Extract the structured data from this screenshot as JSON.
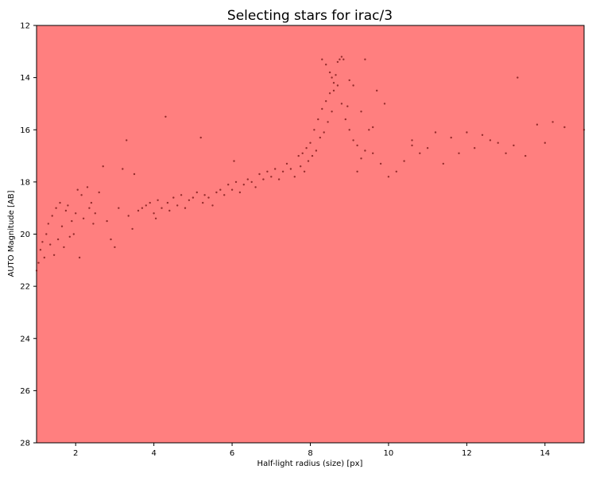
{
  "chart_data": {
    "type": "scatter",
    "title": "Selecting stars for irac/3",
    "xlabel": "Half-light radius (size) [px]",
    "ylabel": "AUTO Magnitude [AB]",
    "xlim": [
      1,
      15
    ],
    "ylim": [
      28,
      12
    ],
    "y_inverted": true,
    "xticks": [
      2,
      4,
      6,
      8,
      10,
      12,
      14
    ],
    "yticks": [
      12,
      14,
      16,
      18,
      20,
      22,
      24,
      26,
      28
    ],
    "grid": false,
    "legend": "none",
    "background_color": "#ff7f7f",
    "point_color": "#5a0000",
    "series": [
      {
        "points": [
          [
            1.0,
            21.4
          ],
          [
            1.05,
            21.1
          ],
          [
            1.1,
            20.6
          ],
          [
            1.15,
            20.3
          ],
          [
            1.2,
            20.9
          ],
          [
            1.25,
            20.0
          ],
          [
            1.3,
            19.6
          ],
          [
            1.35,
            20.4
          ],
          [
            1.4,
            19.3
          ],
          [
            1.45,
            20.8
          ],
          [
            1.5,
            19.0
          ],
          [
            1.55,
            20.2
          ],
          [
            1.6,
            18.8
          ],
          [
            1.65,
            19.7
          ],
          [
            1.7,
            20.5
          ],
          [
            1.75,
            19.1
          ],
          [
            1.8,
            18.9
          ],
          [
            1.85,
            20.1
          ],
          [
            1.9,
            19.5
          ],
          [
            1.95,
            20.0
          ],
          [
            2.0,
            19.2
          ],
          [
            2.05,
            18.3
          ],
          [
            2.1,
            20.9
          ],
          [
            2.15,
            18.5
          ],
          [
            2.2,
            19.4
          ],
          [
            2.3,
            18.2
          ],
          [
            2.35,
            19.0
          ],
          [
            2.4,
            18.8
          ],
          [
            2.45,
            19.6
          ],
          [
            2.5,
            19.2
          ],
          [
            2.6,
            18.4
          ],
          [
            2.7,
            17.4
          ],
          [
            2.8,
            19.5
          ],
          [
            2.9,
            20.2
          ],
          [
            3.0,
            20.5
          ],
          [
            3.1,
            19.0
          ],
          [
            3.2,
            17.5
          ],
          [
            3.3,
            16.4
          ],
          [
            3.35,
            19.3
          ],
          [
            3.45,
            19.8
          ],
          [
            3.5,
            17.7
          ],
          [
            3.6,
            19.1
          ],
          [
            3.7,
            19.0
          ],
          [
            3.8,
            18.9
          ],
          [
            3.9,
            18.8
          ],
          [
            4.0,
            19.2
          ],
          [
            4.05,
            19.4
          ],
          [
            4.1,
            18.7
          ],
          [
            4.2,
            19.0
          ],
          [
            4.3,
            15.5
          ],
          [
            4.35,
            18.8
          ],
          [
            4.4,
            19.1
          ],
          [
            4.5,
            18.6
          ],
          [
            4.6,
            18.9
          ],
          [
            4.7,
            18.5
          ],
          [
            4.8,
            19.0
          ],
          [
            4.9,
            18.7
          ],
          [
            5.0,
            18.6
          ],
          [
            5.1,
            18.4
          ],
          [
            5.2,
            16.3
          ],
          [
            5.25,
            18.8
          ],
          [
            5.3,
            18.5
          ],
          [
            5.4,
            18.6
          ],
          [
            5.5,
            18.9
          ],
          [
            5.6,
            18.4
          ],
          [
            5.7,
            18.3
          ],
          [
            5.8,
            18.5
          ],
          [
            5.9,
            18.1
          ],
          [
            6.0,
            18.3
          ],
          [
            6.05,
            17.2
          ],
          [
            6.1,
            18.0
          ],
          [
            6.2,
            18.4
          ],
          [
            6.3,
            18.1
          ],
          [
            6.4,
            17.9
          ],
          [
            6.5,
            18.0
          ],
          [
            6.6,
            18.2
          ],
          [
            6.7,
            17.7
          ],
          [
            6.8,
            17.9
          ],
          [
            6.9,
            17.6
          ],
          [
            7.0,
            17.8
          ],
          [
            7.1,
            17.5
          ],
          [
            7.2,
            17.9
          ],
          [
            7.3,
            17.6
          ],
          [
            7.4,
            17.3
          ],
          [
            7.5,
            17.5
          ],
          [
            7.6,
            17.8
          ],
          [
            7.7,
            17.0
          ],
          [
            7.75,
            17.4
          ],
          [
            7.8,
            16.9
          ],
          [
            7.85,
            17.6
          ],
          [
            7.9,
            16.7
          ],
          [
            7.95,
            17.2
          ],
          [
            8.0,
            16.5
          ],
          [
            8.05,
            17.0
          ],
          [
            8.1,
            16.0
          ],
          [
            8.15,
            16.8
          ],
          [
            8.2,
            15.6
          ],
          [
            8.25,
            16.3
          ],
          [
            8.3,
            15.2
          ],
          [
            8.35,
            16.1
          ],
          [
            8.4,
            14.9
          ],
          [
            8.45,
            15.7
          ],
          [
            8.5,
            14.6
          ],
          [
            8.55,
            15.3
          ],
          [
            8.6,
            14.2
          ],
          [
            8.65,
            13.9
          ],
          [
            8.7,
            13.4
          ],
          [
            8.75,
            13.3
          ],
          [
            8.8,
            13.2
          ],
          [
            8.85,
            13.3
          ],
          [
            8.3,
            13.3
          ],
          [
            8.4,
            13.5
          ],
          [
            8.5,
            13.8
          ],
          [
            8.55,
            14.0
          ],
          [
            8.6,
            14.5
          ],
          [
            8.7,
            14.3
          ],
          [
            8.8,
            15.0
          ],
          [
            8.9,
            15.6
          ],
          [
            9.0,
            16.0
          ],
          [
            9.1,
            16.4
          ],
          [
            9.0,
            14.1
          ],
          [
            9.2,
            16.6
          ],
          [
            9.3,
            17.1
          ],
          [
            9.4,
            13.3
          ],
          [
            9.5,
            16.0
          ],
          [
            9.6,
            16.9
          ],
          [
            9.7,
            14.5
          ],
          [
            9.8,
            17.3
          ],
          [
            9.9,
            15.0
          ],
          [
            10.0,
            17.8
          ],
          [
            10.2,
            17.6
          ],
          [
            10.4,
            17.2
          ],
          [
            10.6,
            16.4
          ],
          [
            10.8,
            16.9
          ],
          [
            11.0,
            16.7
          ],
          [
            11.2,
            16.1
          ],
          [
            11.4,
            17.3
          ],
          [
            11.6,
            16.3
          ],
          [
            11.8,
            16.9
          ],
          [
            12.0,
            16.1
          ],
          [
            12.2,
            16.7
          ],
          [
            12.4,
            16.2
          ],
          [
            12.6,
            16.4
          ],
          [
            12.8,
            16.5
          ],
          [
            13.0,
            16.9
          ],
          [
            13.2,
            16.6
          ],
          [
            13.3,
            14.0
          ],
          [
            13.5,
            17.0
          ],
          [
            13.8,
            15.8
          ],
          [
            14.0,
            16.5
          ],
          [
            14.2,
            15.7
          ],
          [
            14.5,
            15.9
          ],
          [
            15.0,
            16.0
          ],
          [
            10.6,
            16.6
          ],
          [
            9.6,
            15.9
          ],
          [
            9.4,
            16.8
          ],
          [
            9.2,
            17.6
          ],
          [
            9.3,
            15.3
          ],
          [
            8.95,
            15.1
          ],
          [
            9.1,
            14.3
          ]
        ]
      }
    ]
  }
}
